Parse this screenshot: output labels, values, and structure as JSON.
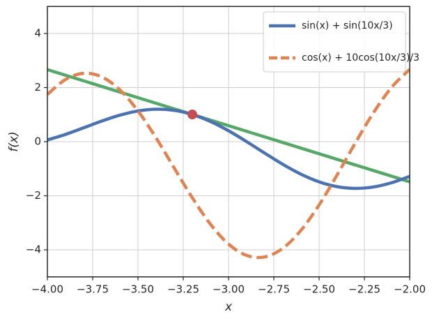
{
  "chart_data": {
    "type": "line",
    "xlabel": "x",
    "ylabel": "f(x)",
    "xlim": [
      -4.0,
      -2.0
    ],
    "ylim": [
      -5,
      5
    ],
    "xticks": [
      {
        "value": -4.0,
        "label": "−4.00"
      },
      {
        "value": -3.75,
        "label": "−3.75"
      },
      {
        "value": -3.5,
        "label": "−3.50"
      },
      {
        "value": -3.25,
        "label": "−3.25"
      },
      {
        "value": -3.0,
        "label": "−3.00"
      },
      {
        "value": -2.75,
        "label": "−2.75"
      },
      {
        "value": -2.5,
        "label": "−2.50"
      },
      {
        "value": -2.25,
        "label": "−2.25"
      },
      {
        "value": -2.0,
        "label": "−2.00"
      }
    ],
    "yticks": [
      {
        "value": -4,
        "label": "−4"
      },
      {
        "value": -2,
        "label": "−2"
      },
      0,
      2,
      4
    ],
    "grid": true,
    "legend": "upper right",
    "x": [
      -4.0,
      -3.9,
      -3.8,
      -3.7,
      -3.6,
      -3.5,
      -3.4,
      -3.3,
      -3.2,
      -3.1,
      -3.0,
      -2.9,
      -2.8,
      -2.7,
      -2.6,
      -2.5,
      -2.4,
      -2.3,
      -2.2,
      -2.1,
      -2.0
    ],
    "series": [
      {
        "name": "sin(x) + sin(10x/3)",
        "color": "#4c72b0",
        "linestyle": "solid",
        "values": [
          0.063,
          0.268,
          0.512,
          0.761,
          0.979,
          1.134,
          1.199,
          1.158,
          1.005,
          0.747,
          0.403,
          0.0,
          -0.426,
          -0.84,
          -1.203,
          -1.486,
          -1.665,
          -1.728,
          -1.676,
          -1.52,
          -1.283
        ]
      },
      {
        "name": "cos(x) + 10cos(10x/3)/3",
        "color": "#dd8452",
        "linestyle": "dashed",
        "values": [
          1.746,
          2.299,
          2.526,
          2.395,
          1.916,
          1.136,
          0.139,
          -0.973,
          -2.074,
          -3.05,
          -3.787,
          -4.207,
          -4.262,
          -3.941,
          -3.277,
          -2.34,
          -1.222,
          -0.045,
          1.069,
          2.008,
          2.675
        ]
      }
    ],
    "tangent": {
      "color": "#55a868",
      "x": [
        -4.0,
        -2.0
      ],
      "values": [
        2.664,
        -1.484
      ]
    },
    "point": {
      "color": "#c44e52",
      "x": -3.2,
      "value": 1.005
    }
  }
}
